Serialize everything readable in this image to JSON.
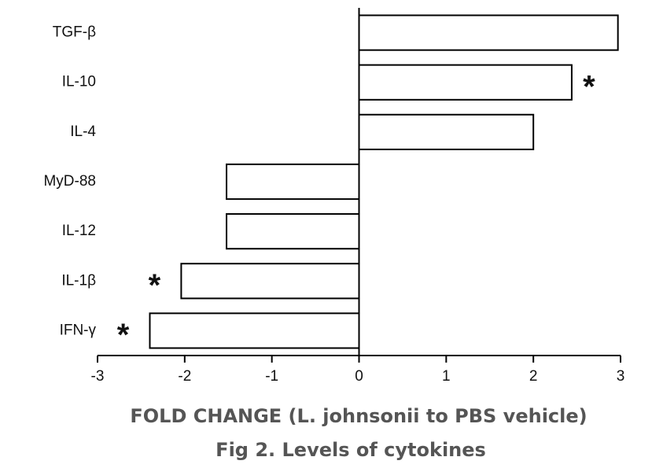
{
  "chart_data": {
    "type": "barh",
    "title": "Fig 2. Levels of cytokines",
    "xlabel": "FOLD CHANGE (L. johnsonii to PBS vehicle)",
    "categories": [
      "TGF-β",
      "IL-10",
      "IL-4",
      "MyD-88",
      "IL-12",
      "IL-1β",
      "IFN-γ"
    ],
    "values": [
      2.97,
      2.44,
      2.0,
      -1.52,
      -1.52,
      -2.04,
      -2.4
    ],
    "significance": [
      null,
      "*",
      null,
      null,
      null,
      "*",
      "*"
    ],
    "color": "#ffffff",
    "edgecolor": "#000000",
    "xlim": [
      -3,
      3
    ],
    "xticks": [
      -3,
      -2,
      -1,
      0,
      1,
      2,
      3
    ],
    "grid": false
  }
}
